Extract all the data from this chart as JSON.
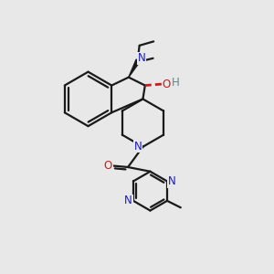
{
  "bg_color": "#e8e8e8",
  "bond_color": "#1a1a1a",
  "n_color": "#1a1acc",
  "o_color": "#cc1a1a",
  "h_color": "#5a8888",
  "figsize": [
    3.0,
    3.0
  ],
  "dpi": 100,
  "xlim": [
    0,
    10
  ],
  "ylim": [
    0,
    10
  ]
}
